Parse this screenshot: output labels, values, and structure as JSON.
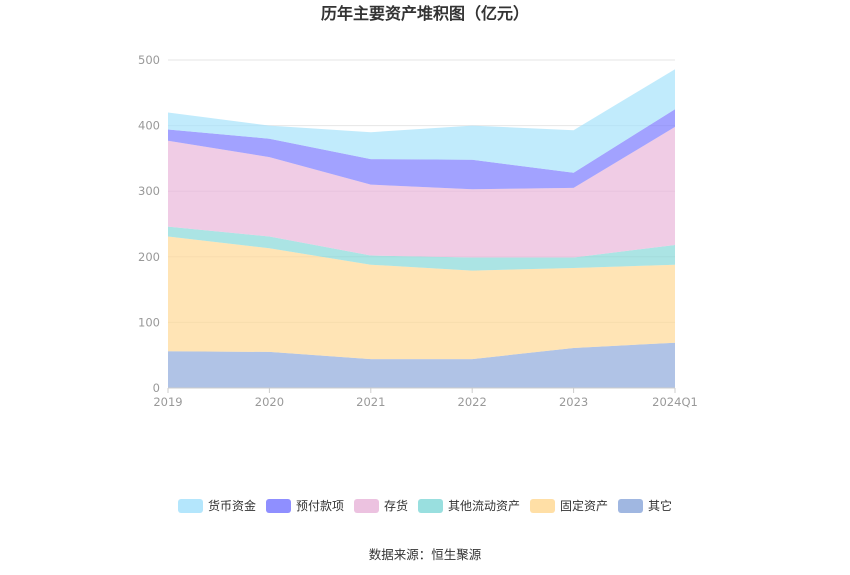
{
  "chart_data": {
    "type": "area",
    "stacked": true,
    "title": "历年主要资产堆积图（亿元）",
    "categories": [
      "2019",
      "2020",
      "2021",
      "2022",
      "2023",
      "2024Q1"
    ],
    "ylim": [
      0,
      500
    ],
    "yticks": [
      "0",
      "100",
      "200",
      "300",
      "400",
      "500"
    ],
    "grid": true,
    "legend_position": "bottom",
    "series": [
      {
        "name": "其它",
        "color": "#8faadc",
        "values": [
          56,
          55,
          44,
          44,
          61,
          69
        ]
      },
      {
        "name": "固定资产",
        "color": "#ffd996",
        "values": [
          175,
          158,
          144,
          135,
          122,
          119
        ]
      },
      {
        "name": "其他流动资产",
        "color": "#87d9d9",
        "values": [
          15,
          18,
          14,
          20,
          16,
          30
        ]
      },
      {
        "name": "存货",
        "color": "#e9b7da",
        "values": [
          131,
          121,
          108,
          104,
          106,
          180
        ]
      },
      {
        "name": "预付款项",
        "color": "#7b7bff",
        "values": [
          17,
          28,
          39,
          45,
          23,
          27
        ]
      },
      {
        "name": "货币资金",
        "color": "#a7e2fb",
        "values": [
          26,
          20,
          41,
          52,
          65,
          61
        ]
      }
    ],
    "legend_order": [
      "货币资金",
      "预付款项",
      "存货",
      "其他流动资产",
      "固定资产",
      "其它"
    ]
  },
  "source_text": "数据来源：恒生聚源"
}
